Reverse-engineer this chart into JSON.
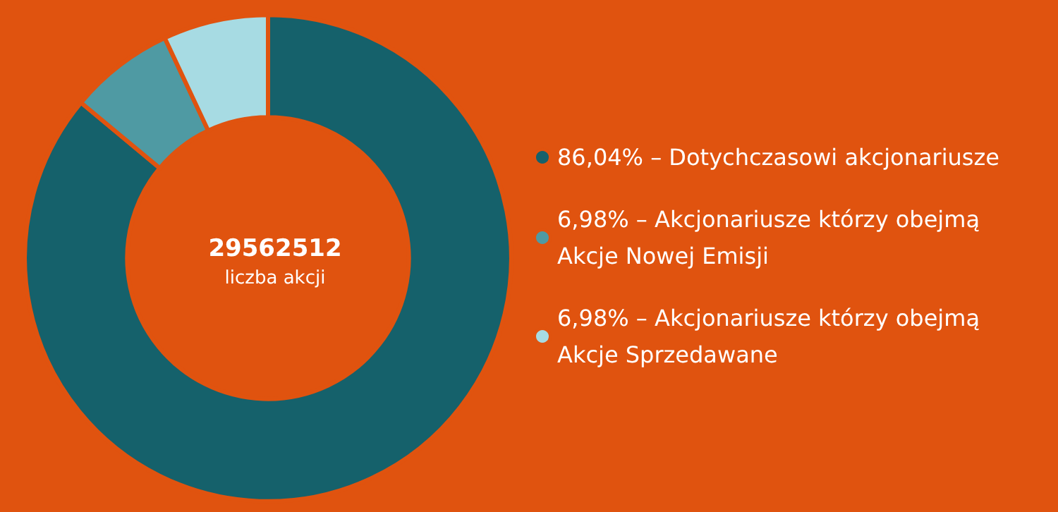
{
  "chart_data": {
    "type": "donut",
    "categories": [
      "86,04% – Dotychczasowi akcjonariusze",
      "6,98% – Akcjonariusze którzy obejmą Akcje Nowej Emisji",
      "6,98% – Akcjonariusze którzy obejmą Akcje Sprzedawane"
    ],
    "values": [
      86.04,
      6.98,
      6.98
    ],
    "colors": [
      "#15616b",
      "#4f9aa3",
      "#a7dbe3"
    ],
    "annotations": [
      "29562512",
      "liczba akcji"
    ],
    "legend": "right"
  }
}
